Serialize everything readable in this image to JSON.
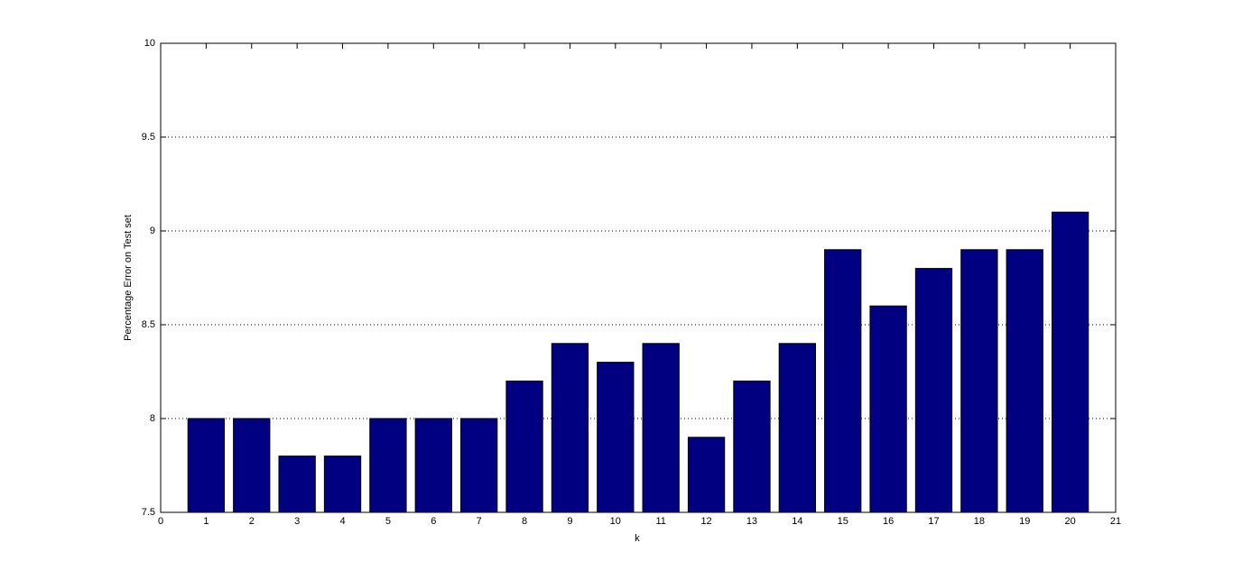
{
  "chart_data": {
    "type": "bar",
    "xlabel": "k",
    "ylabel": "Percentage Error on Test set",
    "x": [
      1,
      2,
      3,
      4,
      5,
      6,
      7,
      8,
      9,
      10,
      11,
      12,
      13,
      14,
      15,
      16,
      17,
      18,
      19,
      20
    ],
    "values": [
      8,
      8,
      7.8,
      7.8,
      8,
      8,
      8,
      8.2,
      8.4,
      8.3,
      8.4,
      7.9,
      8.2,
      8.4,
      8.9,
      8.6,
      8.8,
      8.9,
      8.9,
      9.1
    ],
    "color": "#000080",
    "xlim": [
      0,
      21
    ],
    "xticks": [
      0,
      1,
      2,
      3,
      4,
      5,
      6,
      7,
      8,
      9,
      10,
      11,
      12,
      13,
      14,
      15,
      16,
      17,
      18,
      19,
      20,
      21
    ],
    "ylim": [
      7.5,
      10
    ],
    "yticks": [
      7.5,
      8,
      8.5,
      9,
      9.5,
      10
    ],
    "grid": "y"
  }
}
